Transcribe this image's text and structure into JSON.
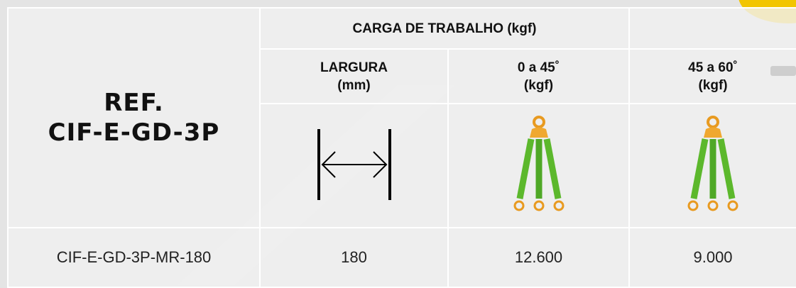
{
  "header": {
    "ref_lines": [
      "REF.",
      "CIF-E-GD-3P"
    ],
    "group_title": "CARGA DE TRABALHO (kgf)",
    "columns": [
      [
        "LARGURA",
        "(mm)"
      ],
      [
        "0 a 45˚",
        "(kgf)"
      ],
      [
        "45 a 60˚",
        "(kgf)"
      ]
    ]
  },
  "table": {
    "rows": [
      [
        "CIF-E-GD-3P-MR-180",
        "180",
        "12.600",
        "9.000"
      ]
    ]
  }
}
